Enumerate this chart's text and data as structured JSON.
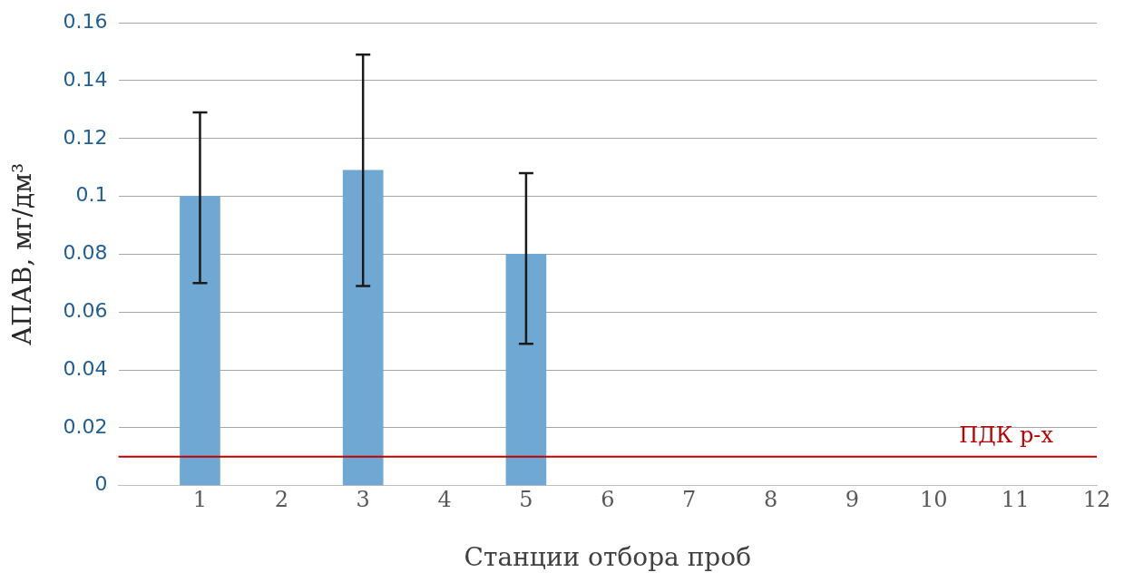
{
  "chart_data": {
    "type": "bar",
    "xlabel": "Станции отбора проб",
    "ylabel": "АПАВ, мг/дм³",
    "x": [
      1,
      3,
      5
    ],
    "values": [
      0.1,
      0.109,
      0.08
    ],
    "color": "#6fa9d3",
    "errors": [
      [
        0.07,
        0.129
      ],
      [
        0.069,
        0.149
      ],
      [
        0.049,
        0.108
      ]
    ],
    "xlim": [
      0,
      12
    ],
    "xticks": [
      1,
      2,
      3,
      4,
      5,
      6,
      7,
      8,
      9,
      10,
      11,
      12
    ],
    "ylim": [
      0,
      0.16
    ],
    "yticks": [
      0,
      0.02,
      0.04,
      0.06,
      0.08,
      0.1,
      0.12,
      0.14,
      0.16
    ],
    "grid": "y",
    "legend": false,
    "ref_lines": [
      {
        "axis": "y",
        "value": 0.01,
        "label": "ПДК р-х",
        "color": "#c00000"
      }
    ]
  }
}
